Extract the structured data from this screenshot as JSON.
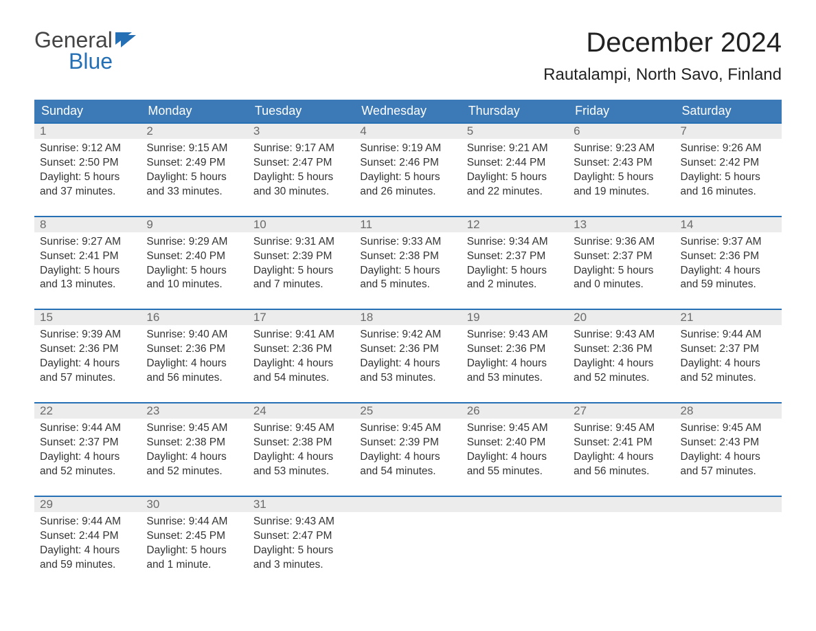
{
  "logo": {
    "line1": "General",
    "line2": "Blue"
  },
  "title": "December 2024",
  "location": "Rautalampi, North Savo, Finland",
  "day_headers": [
    "Sunday",
    "Monday",
    "Tuesday",
    "Wednesday",
    "Thursday",
    "Friday",
    "Saturday"
  ],
  "colors": {
    "header_bg": "#3b79b7",
    "header_text": "#ffffff",
    "week_border": "#2570b5",
    "daynum_bg": "#ececec",
    "daynum_text": "#6a6a6a",
    "body_text": "#333333",
    "logo_blue": "#2570b5",
    "logo_grey": "#444444",
    "background": "#ffffff"
  },
  "weeks": [
    [
      {
        "n": "1",
        "sr": "Sunrise: 9:12 AM",
        "ss": "Sunset: 2:50 PM",
        "d1": "Daylight: 5 hours",
        "d2": "and 37 minutes."
      },
      {
        "n": "2",
        "sr": "Sunrise: 9:15 AM",
        "ss": "Sunset: 2:49 PM",
        "d1": "Daylight: 5 hours",
        "d2": "and 33 minutes."
      },
      {
        "n": "3",
        "sr": "Sunrise: 9:17 AM",
        "ss": "Sunset: 2:47 PM",
        "d1": "Daylight: 5 hours",
        "d2": "and 30 minutes."
      },
      {
        "n": "4",
        "sr": "Sunrise: 9:19 AM",
        "ss": "Sunset: 2:46 PM",
        "d1": "Daylight: 5 hours",
        "d2": "and 26 minutes."
      },
      {
        "n": "5",
        "sr": "Sunrise: 9:21 AM",
        "ss": "Sunset: 2:44 PM",
        "d1": "Daylight: 5 hours",
        "d2": "and 22 minutes."
      },
      {
        "n": "6",
        "sr": "Sunrise: 9:23 AM",
        "ss": "Sunset: 2:43 PM",
        "d1": "Daylight: 5 hours",
        "d2": "and 19 minutes."
      },
      {
        "n": "7",
        "sr": "Sunrise: 9:26 AM",
        "ss": "Sunset: 2:42 PM",
        "d1": "Daylight: 5 hours",
        "d2": "and 16 minutes."
      }
    ],
    [
      {
        "n": "8",
        "sr": "Sunrise: 9:27 AM",
        "ss": "Sunset: 2:41 PM",
        "d1": "Daylight: 5 hours",
        "d2": "and 13 minutes."
      },
      {
        "n": "9",
        "sr": "Sunrise: 9:29 AM",
        "ss": "Sunset: 2:40 PM",
        "d1": "Daylight: 5 hours",
        "d2": "and 10 minutes."
      },
      {
        "n": "10",
        "sr": "Sunrise: 9:31 AM",
        "ss": "Sunset: 2:39 PM",
        "d1": "Daylight: 5 hours",
        "d2": "and 7 minutes."
      },
      {
        "n": "11",
        "sr": "Sunrise: 9:33 AM",
        "ss": "Sunset: 2:38 PM",
        "d1": "Daylight: 5 hours",
        "d2": "and 5 minutes."
      },
      {
        "n": "12",
        "sr": "Sunrise: 9:34 AM",
        "ss": "Sunset: 2:37 PM",
        "d1": "Daylight: 5 hours",
        "d2": "and 2 minutes."
      },
      {
        "n": "13",
        "sr": "Sunrise: 9:36 AM",
        "ss": "Sunset: 2:37 PM",
        "d1": "Daylight: 5 hours",
        "d2": "and 0 minutes."
      },
      {
        "n": "14",
        "sr": "Sunrise: 9:37 AM",
        "ss": "Sunset: 2:36 PM",
        "d1": "Daylight: 4 hours",
        "d2": "and 59 minutes."
      }
    ],
    [
      {
        "n": "15",
        "sr": "Sunrise: 9:39 AM",
        "ss": "Sunset: 2:36 PM",
        "d1": "Daylight: 4 hours",
        "d2": "and 57 minutes."
      },
      {
        "n": "16",
        "sr": "Sunrise: 9:40 AM",
        "ss": "Sunset: 2:36 PM",
        "d1": "Daylight: 4 hours",
        "d2": "and 56 minutes."
      },
      {
        "n": "17",
        "sr": "Sunrise: 9:41 AM",
        "ss": "Sunset: 2:36 PM",
        "d1": "Daylight: 4 hours",
        "d2": "and 54 minutes."
      },
      {
        "n": "18",
        "sr": "Sunrise: 9:42 AM",
        "ss": "Sunset: 2:36 PM",
        "d1": "Daylight: 4 hours",
        "d2": "and 53 minutes."
      },
      {
        "n": "19",
        "sr": "Sunrise: 9:43 AM",
        "ss": "Sunset: 2:36 PM",
        "d1": "Daylight: 4 hours",
        "d2": "and 53 minutes."
      },
      {
        "n": "20",
        "sr": "Sunrise: 9:43 AM",
        "ss": "Sunset: 2:36 PM",
        "d1": "Daylight: 4 hours",
        "d2": "and 52 minutes."
      },
      {
        "n": "21",
        "sr": "Sunrise: 9:44 AM",
        "ss": "Sunset: 2:37 PM",
        "d1": "Daylight: 4 hours",
        "d2": "and 52 minutes."
      }
    ],
    [
      {
        "n": "22",
        "sr": "Sunrise: 9:44 AM",
        "ss": "Sunset: 2:37 PM",
        "d1": "Daylight: 4 hours",
        "d2": "and 52 minutes."
      },
      {
        "n": "23",
        "sr": "Sunrise: 9:45 AM",
        "ss": "Sunset: 2:38 PM",
        "d1": "Daylight: 4 hours",
        "d2": "and 52 minutes."
      },
      {
        "n": "24",
        "sr": "Sunrise: 9:45 AM",
        "ss": "Sunset: 2:38 PM",
        "d1": "Daylight: 4 hours",
        "d2": "and 53 minutes."
      },
      {
        "n": "25",
        "sr": "Sunrise: 9:45 AM",
        "ss": "Sunset: 2:39 PM",
        "d1": "Daylight: 4 hours",
        "d2": "and 54 minutes."
      },
      {
        "n": "26",
        "sr": "Sunrise: 9:45 AM",
        "ss": "Sunset: 2:40 PM",
        "d1": "Daylight: 4 hours",
        "d2": "and 55 minutes."
      },
      {
        "n": "27",
        "sr": "Sunrise: 9:45 AM",
        "ss": "Sunset: 2:41 PM",
        "d1": "Daylight: 4 hours",
        "d2": "and 56 minutes."
      },
      {
        "n": "28",
        "sr": "Sunrise: 9:45 AM",
        "ss": "Sunset: 2:43 PM",
        "d1": "Daylight: 4 hours",
        "d2": "and 57 minutes."
      }
    ],
    [
      {
        "n": "29",
        "sr": "Sunrise: 9:44 AM",
        "ss": "Sunset: 2:44 PM",
        "d1": "Daylight: 4 hours",
        "d2": "and 59 minutes."
      },
      {
        "n": "30",
        "sr": "Sunrise: 9:44 AM",
        "ss": "Sunset: 2:45 PM",
        "d1": "Daylight: 5 hours",
        "d2": "and 1 minute."
      },
      {
        "n": "31",
        "sr": "Sunrise: 9:43 AM",
        "ss": "Sunset: 2:47 PM",
        "d1": "Daylight: 5 hours",
        "d2": "and 3 minutes."
      },
      {
        "n": "",
        "sr": "",
        "ss": "",
        "d1": "",
        "d2": ""
      },
      {
        "n": "",
        "sr": "",
        "ss": "",
        "d1": "",
        "d2": ""
      },
      {
        "n": "",
        "sr": "",
        "ss": "",
        "d1": "",
        "d2": ""
      },
      {
        "n": "",
        "sr": "",
        "ss": "",
        "d1": "",
        "d2": ""
      }
    ]
  ]
}
